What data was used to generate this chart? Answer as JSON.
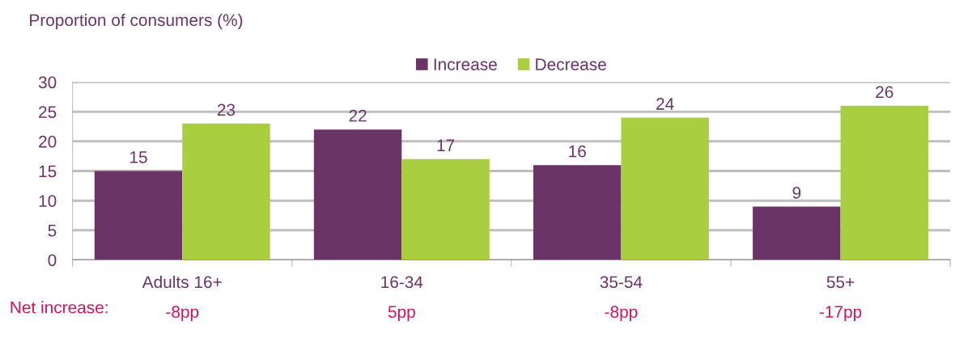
{
  "chart_data": {
    "type": "bar",
    "ylabel": "Proportion of consumers (%)",
    "categories": [
      "Adults 16+",
      "16-34",
      "35-54",
      "55+"
    ],
    "series": [
      {
        "name": "Increase",
        "color": "#6b3466",
        "values": [
          15,
          22,
          16,
          9
        ]
      },
      {
        "name": "Decrease",
        "color": "#a9cf41",
        "values": [
          23,
          17,
          24,
          26
        ]
      }
    ],
    "ylim": [
      0,
      30
    ],
    "yticks": [
      0,
      5,
      10,
      15,
      20,
      25,
      30
    ],
    "grid": "y",
    "legend": "top",
    "data_labels": true,
    "annotations": [
      "Net increase:",
      "-8pp",
      "5pp",
      "-8pp",
      "-17pp"
    ]
  }
}
